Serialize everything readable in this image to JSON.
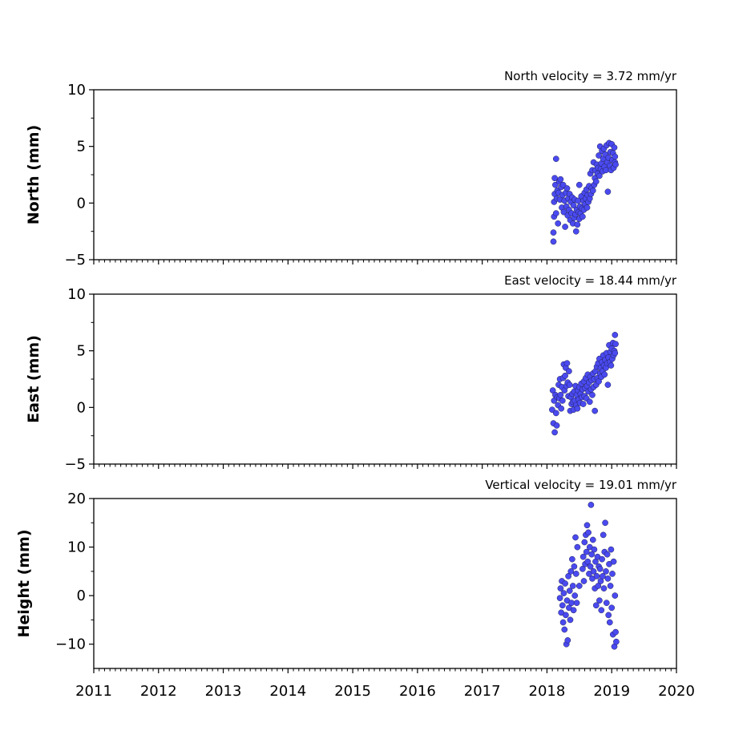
{
  "chart_data": [
    {
      "type": "scatter",
      "title": "North velocity = 3.72 mm/yr",
      "ylabel": "North (mm)",
      "xlim": [
        2011,
        2020
      ],
      "ylim": [
        -5,
        10
      ],
      "yticks": [
        -5,
        0,
        5,
        10
      ],
      "ytick_labels": [
        "−5",
        "0",
        "5",
        "10"
      ],
      "color": "#4a4af0",
      "points": [
        [
          2018.1,
          -3.4
        ],
        [
          2018.1,
          -2.6
        ],
        [
          2018.11,
          -1.2
        ],
        [
          2018.11,
          0.1
        ],
        [
          2018.12,
          0.8
        ],
        [
          2018.12,
          2.2
        ],
        [
          2018.13,
          1.6
        ],
        [
          2018.14,
          3.9
        ],
        [
          2018.14,
          -0.9
        ],
        [
          2018.15,
          0.4
        ],
        [
          2018.16,
          1.1
        ],
        [
          2018.17,
          -1.8
        ],
        [
          2018.18,
          0.9
        ],
        [
          2018.19,
          1.9
        ],
        [
          2018.2,
          0.3
        ],
        [
          2018.21,
          2.1
        ],
        [
          2018.22,
          1.4
        ],
        [
          2018.23,
          -0.4
        ],
        [
          2018.24,
          0.7
        ],
        [
          2018.25,
          1.6
        ],
        [
          2018.26,
          -0.8
        ],
        [
          2018.27,
          0.2
        ],
        [
          2018.28,
          -2.1
        ],
        [
          2018.29,
          0.9
        ],
        [
          2018.3,
          -0.3
        ],
        [
          2018.31,
          1.3
        ],
        [
          2018.32,
          -1.1
        ],
        [
          2018.33,
          0.4
        ],
        [
          2018.34,
          -0.6
        ],
        [
          2018.35,
          0.8
        ],
        [
          2018.36,
          -1.5
        ],
        [
          2018.37,
          0.1
        ],
        [
          2018.38,
          -0.9
        ],
        [
          2018.39,
          0.5
        ],
        [
          2018.4,
          -1.8
        ],
        [
          2018.41,
          -0.2
        ],
        [
          2018.42,
          -1.3
        ],
        [
          2018.43,
          0.3
        ],
        [
          2018.44,
          -1.0
        ],
        [
          2018.45,
          -2.5
        ],
        [
          2018.46,
          -0.6
        ],
        [
          2018.47,
          -1.9
        ],
        [
          2018.48,
          0.2
        ],
        [
          2018.49,
          -0.8
        ],
        [
          2018.5,
          1.6
        ],
        [
          2018.5,
          -1.4
        ],
        [
          2018.51,
          -0.3
        ],
        [
          2018.52,
          -0.9
        ],
        [
          2018.53,
          0.6
        ],
        [
          2018.54,
          -0.5
        ],
        [
          2018.55,
          -1.2
        ],
        [
          2018.56,
          0.2
        ],
        [
          2018.57,
          -0.6
        ],
        [
          2018.58,
          0.9
        ],
        [
          2018.59,
          -0.1
        ],
        [
          2018.6,
          0.4
        ],
        [
          2018.61,
          1.2
        ],
        [
          2018.62,
          -0.4
        ],
        [
          2018.63,
          0.7
        ],
        [
          2018.64,
          0.1
        ],
        [
          2018.65,
          1.5
        ],
        [
          2018.66,
          0.4
        ],
        [
          2018.67,
          2.6
        ],
        [
          2018.68,
          0.8
        ],
        [
          2018.69,
          1.3
        ],
        [
          2018.7,
          2.9
        ],
        [
          2018.71,
          1.1
        ],
        [
          2018.72,
          3.6
        ],
        [
          2018.73,
          1.6
        ],
        [
          2018.74,
          2.2
        ],
        [
          2018.75,
          2.9
        ],
        [
          2018.76,
          1.9
        ],
        [
          2018.77,
          3.4
        ],
        [
          2018.78,
          2.6
        ],
        [
          2018.79,
          3.1
        ],
        [
          2018.8,
          4.2
        ],
        [
          2018.81,
          2.4
        ],
        [
          2018.82,
          5.0
        ],
        [
          2018.83,
          3.0
        ],
        [
          2018.84,
          3.5
        ],
        [
          2018.85,
          4.6
        ],
        [
          2018.86,
          2.8
        ],
        [
          2018.87,
          3.9
        ],
        [
          2018.88,
          4.8
        ],
        [
          2018.89,
          3.2
        ],
        [
          2018.9,
          4.3
        ],
        [
          2018.91,
          2.9
        ],
        [
          2018.92,
          5.1
        ],
        [
          2018.93,
          3.6
        ],
        [
          2018.94,
          1.0
        ],
        [
          2018.95,
          4.0
        ],
        [
          2018.96,
          5.3
        ],
        [
          2018.97,
          3.3
        ],
        [
          2018.98,
          4.5
        ],
        [
          2018.99,
          2.9
        ],
        [
          2019.0,
          5.2
        ],
        [
          2019.01,
          3.8
        ],
        [
          2019.02,
          4.4
        ],
        [
          2019.03,
          3.1
        ],
        [
          2019.04,
          4.9
        ],
        [
          2019.05,
          3.6
        ],
        [
          2019.05,
          4.1
        ],
        [
          2019.06,
          3.4
        ]
      ]
    },
    {
      "type": "scatter",
      "title": "East velocity = 18.44 mm/yr",
      "ylabel": "East (mm)",
      "xlim": [
        2011,
        2020
      ],
      "ylim": [
        -5,
        10
      ],
      "yticks": [
        -5,
        0,
        5,
        10
      ],
      "ytick_labels": [
        "−5",
        "0",
        "5",
        "10"
      ],
      "color": "#4a4af0",
      "points": [
        [
          2018.08,
          -0.2
        ],
        [
          2018.09,
          1.5
        ],
        [
          2018.1,
          -1.4
        ],
        [
          2018.11,
          0.6
        ],
        [
          2018.12,
          -2.2
        ],
        [
          2018.13,
          1.1
        ],
        [
          2018.14,
          -0.5
        ],
        [
          2018.15,
          -1.6
        ],
        [
          2018.16,
          0.9
        ],
        [
          2018.17,
          0.2
        ],
        [
          2018.18,
          2.0
        ],
        [
          2018.19,
          0.8
        ],
        [
          2018.2,
          2.5
        ],
        [
          2018.21,
          1.1
        ],
        [
          2018.22,
          -0.1
        ],
        [
          2018.23,
          1.8
        ],
        [
          2018.24,
          0.6
        ],
        [
          2018.25,
          2.6
        ],
        [
          2018.26,
          3.8
        ],
        [
          2018.27,
          1.5
        ],
        [
          2018.28,
          2.8
        ],
        [
          2018.29,
          3.5
        ],
        [
          2018.3,
          1.9
        ],
        [
          2018.31,
          3.9
        ],
        [
          2018.32,
          2.2
        ],
        [
          2018.33,
          1.0
        ],
        [
          2018.34,
          3.2
        ],
        [
          2018.35,
          2.0
        ],
        [
          2018.36,
          -0.3
        ],
        [
          2018.37,
          0.9
        ],
        [
          2018.38,
          0.3
        ],
        [
          2018.39,
          1.2
        ],
        [
          2018.4,
          0.5
        ],
        [
          2018.41,
          -0.2
        ],
        [
          2018.42,
          1.4
        ],
        [
          2018.43,
          0.6
        ],
        [
          2018.44,
          1.9
        ],
        [
          2018.45,
          0.2
        ],
        [
          2018.46,
          1.1
        ],
        [
          2018.47,
          -0.1
        ],
        [
          2018.48,
          1.5
        ],
        [
          2018.49,
          0.7
        ],
        [
          2018.5,
          1.8
        ],
        [
          2018.51,
          0.4
        ],
        [
          2018.52,
          1.2
        ],
        [
          2018.53,
          2.1
        ],
        [
          2018.54,
          0.9
        ],
        [
          2018.55,
          1.6
        ],
        [
          2018.56,
          0.3
        ],
        [
          2018.57,
          2.3
        ],
        [
          2018.58,
          1.0
        ],
        [
          2018.59,
          1.7
        ],
        [
          2018.6,
          2.6
        ],
        [
          2018.61,
          0.8
        ],
        [
          2018.62,
          1.9
        ],
        [
          2018.63,
          2.9
        ],
        [
          2018.64,
          1.4
        ],
        [
          2018.65,
          2.2
        ],
        [
          2018.66,
          0.5
        ],
        [
          2018.67,
          2.7
        ],
        [
          2018.68,
          1.6
        ],
        [
          2018.69,
          2.4
        ],
        [
          2018.7,
          1.1
        ],
        [
          2018.71,
          3.0
        ],
        [
          2018.72,
          1.8
        ],
        [
          2018.73,
          2.5
        ],
        [
          2018.74,
          -0.3
        ],
        [
          2018.75,
          3.2
        ],
        [
          2018.76,
          2.0
        ],
        [
          2018.77,
          3.6
        ],
        [
          2018.78,
          2.6
        ],
        [
          2018.79,
          3.9
        ],
        [
          2018.8,
          2.3
        ],
        [
          2018.81,
          4.3
        ],
        [
          2018.82,
          3.0
        ],
        [
          2018.83,
          3.5
        ],
        [
          2018.84,
          2.7
        ],
        [
          2018.85,
          4.0
        ],
        [
          2018.86,
          3.2
        ],
        [
          2018.87,
          4.6
        ],
        [
          2018.88,
          3.7
        ],
        [
          2018.89,
          2.9
        ],
        [
          2018.9,
          4.2
        ],
        [
          2018.91,
          3.5
        ],
        [
          2018.92,
          4.8
        ],
        [
          2018.93,
          3.9
        ],
        [
          2018.94,
          2.0
        ],
        [
          2018.95,
          4.4
        ],
        [
          2018.96,
          5.5
        ],
        [
          2018.97,
          4.0
        ],
        [
          2018.98,
          4.9
        ],
        [
          2018.99,
          3.7
        ],
        [
          2019.0,
          5.2
        ],
        [
          2019.01,
          4.3
        ],
        [
          2019.02,
          5.7
        ],
        [
          2019.03,
          4.6
        ],
        [
          2019.04,
          5.0
        ],
        [
          2019.05,
          6.4
        ],
        [
          2019.05,
          4.8
        ],
        [
          2019.06,
          5.6
        ]
      ]
    },
    {
      "type": "scatter",
      "title": "Vertical velocity = 19.01 mm/yr",
      "ylabel": "Height (mm)",
      "xlim": [
        2011,
        2020
      ],
      "ylim": [
        -15,
        20
      ],
      "yticks": [
        -10,
        0,
        10,
        20
      ],
      "ytick_labels": [
        "−10",
        "0",
        "10",
        "20"
      ],
      "color": "#4a4af0",
      "points": [
        [
          2018.2,
          -0.5
        ],
        [
          2018.21,
          1.5
        ],
        [
          2018.22,
          -3.5
        ],
        [
          2018.23,
          3.0
        ],
        [
          2018.24,
          -2.0
        ],
        [
          2018.25,
          -5.5
        ],
        [
          2018.26,
          0.5
        ],
        [
          2018.27,
          -7.0
        ],
        [
          2018.28,
          2.5
        ],
        [
          2018.29,
          -4.0
        ],
        [
          2018.3,
          -10.0
        ],
        [
          2018.31,
          -1.0
        ],
        [
          2018.32,
          -9.2
        ],
        [
          2018.33,
          4.0
        ],
        [
          2018.34,
          -2.5
        ],
        [
          2018.35,
          1.0
        ],
        [
          2018.36,
          -5.0
        ],
        [
          2018.37,
          5.0
        ],
        [
          2018.38,
          -1.5
        ],
        [
          2018.39,
          7.5
        ],
        [
          2018.4,
          2.0
        ],
        [
          2018.41,
          -3.0
        ],
        [
          2018.42,
          6.0
        ],
        [
          2018.43,
          0.0
        ],
        [
          2018.44,
          12.0
        ],
        [
          2018.45,
          4.5
        ],
        [
          2018.46,
          -1.5
        ],
        [
          2018.47,
          10.0
        ],
        [
          2018.5,
          2.0
        ],
        [
          2018.55,
          5.5
        ],
        [
          2018.56,
          8.0
        ],
        [
          2018.57,
          3.0
        ],
        [
          2018.58,
          11.0
        ],
        [
          2018.59,
          6.5
        ],
        [
          2018.6,
          12.5
        ],
        [
          2018.61,
          9.0
        ],
        [
          2018.62,
          14.5
        ],
        [
          2018.63,
          7.0
        ],
        [
          2018.64,
          13.0
        ],
        [
          2018.65,
          4.5
        ],
        [
          2018.66,
          10.0
        ],
        [
          2018.67,
          6.0
        ],
        [
          2018.68,
          18.7
        ],
        [
          2018.69,
          8.5
        ],
        [
          2018.7,
          3.5
        ],
        [
          2018.71,
          11.5
        ],
        [
          2018.72,
          5.0
        ],
        [
          2018.73,
          9.5
        ],
        [
          2018.74,
          1.5
        ],
        [
          2018.75,
          7.0
        ],
        [
          2018.76,
          -2.0
        ],
        [
          2018.77,
          4.0
        ],
        [
          2018.78,
          8.0
        ],
        [
          2018.79,
          2.0
        ],
        [
          2018.8,
          6.0
        ],
        [
          2018.81,
          -1.0
        ],
        [
          2018.82,
          5.5
        ],
        [
          2018.83,
          3.0
        ],
        [
          2018.84,
          -3.0
        ],
        [
          2018.85,
          7.5
        ],
        [
          2018.86,
          4.0
        ],
        [
          2018.87,
          12.5
        ],
        [
          2018.88,
          1.5
        ],
        [
          2018.89,
          9.0
        ],
        [
          2018.9,
          15.0
        ],
        [
          2018.91,
          5.0
        ],
        [
          2018.92,
          -1.5
        ],
        [
          2018.93,
          8.5
        ],
        [
          2018.94,
          3.5
        ],
        [
          2018.95,
          -4.0
        ],
        [
          2018.96,
          6.5
        ],
        [
          2018.97,
          -5.5
        ],
        [
          2018.98,
          2.0
        ],
        [
          2018.99,
          9.5
        ],
        [
          2019.0,
          -2.5
        ],
        [
          2019.01,
          4.5
        ],
        [
          2019.02,
          -8.0
        ],
        [
          2019.03,
          7.0
        ],
        [
          2019.04,
          -10.5
        ],
        [
          2019.05,
          0.0
        ],
        [
          2019.06,
          -7.5
        ],
        [
          2019.07,
          -9.5
        ]
      ]
    }
  ],
  "xaxis": {
    "xlim": [
      2011,
      2020
    ],
    "ticks": [
      2011,
      2012,
      2013,
      2014,
      2015,
      2016,
      2017,
      2018,
      2019,
      2020
    ],
    "tick_labels": [
      "2011",
      "2012",
      "2013",
      "2014",
      "2015",
      "2016",
      "2017",
      "2018",
      "2019",
      "2020"
    ]
  }
}
